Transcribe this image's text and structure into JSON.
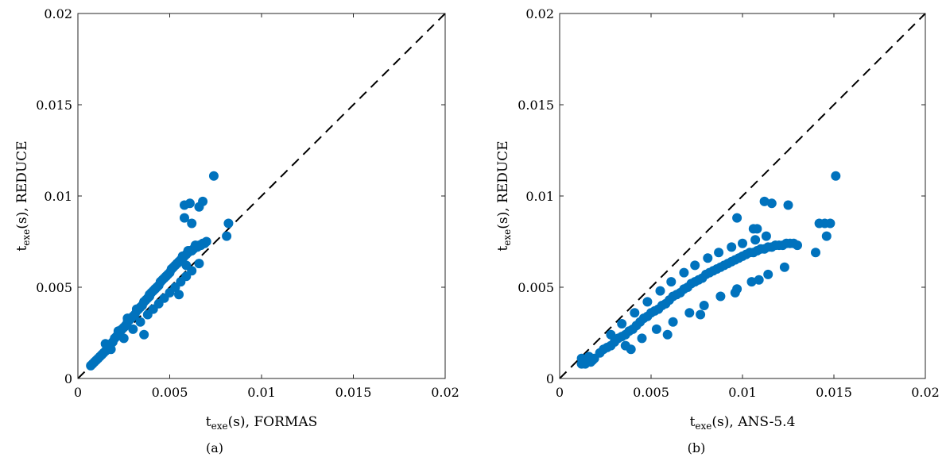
{
  "chart_data": [
    {
      "type": "scatter",
      "panel": "(a)",
      "xlabel_main": "t",
      "xlabel_sub": "exe",
      "xlabel_rest": "(s), FORMAS",
      "ylabel_main": "t",
      "ylabel_sub": "exe",
      "ylabel_rest": "(s), REDUCE",
      "xlim": [
        0,
        0.02
      ],
      "ylim": [
        0,
        0.02
      ],
      "xticks": [
        "0",
        "0.005",
        "0.01",
        "0.015",
        "0.02"
      ],
      "yticks": [
        "0",
        "0.005",
        "0.01",
        "0.015",
        "0.02"
      ],
      "reference_line": "y = x (dashed, black)",
      "marker_color": "#0072BD",
      "x": [
        0.0007,
        0.0008,
        0.0009,
        0.001,
        0.0011,
        0.0012,
        0.0013,
        0.0014,
        0.0015,
        0.0016,
        0.0017,
        0.0018,
        0.0019,
        0.002,
        0.0021,
        0.0022,
        0.0023,
        0.0024,
        0.0025,
        0.0026,
        0.0027,
        0.0028,
        0.0029,
        0.003,
        0.0031,
        0.0032,
        0.0033,
        0.0034,
        0.0035,
        0.0036,
        0.0037,
        0.0038,
        0.0039,
        0.004,
        0.0041,
        0.0042,
        0.0043,
        0.0044,
        0.0045,
        0.0046,
        0.0047,
        0.0048,
        0.0049,
        0.005,
        0.0051,
        0.0052,
        0.0053,
        0.0054,
        0.0055,
        0.0056,
        0.0057,
        0.0058,
        0.0059,
        0.006,
        0.0061,
        0.0062,
        0.0063,
        0.0064,
        0.0065,
        0.0066,
        0.0067,
        0.0068,
        0.0069,
        0.007,
        0.0015,
        0.0022,
        0.0027,
        0.0032,
        0.0036,
        0.0039,
        0.0042,
        0.0045,
        0.0048,
        0.0051,
        0.0054,
        0.0057,
        0.006,
        0.0064,
        0.0018,
        0.0025,
        0.003,
        0.0034,
        0.0038,
        0.0041,
        0.0044,
        0.0047,
        0.005,
        0.0053,
        0.0056,
        0.0059,
        0.0062,
        0.0066,
        0.0036,
        0.0058,
        0.0061,
        0.0058,
        0.0062,
        0.0068,
        0.0066,
        0.0082,
        0.0081,
        0.0074,
        0.0059,
        0.0055
      ],
      "y": [
        0.0007,
        0.0008,
        0.0009,
        0.001,
        0.0011,
        0.0012,
        0.0013,
        0.0014,
        0.0015,
        0.0016,
        0.0018,
        0.0019,
        0.002,
        0.0022,
        0.0023,
        0.0024,
        0.0026,
        0.0027,
        0.0028,
        0.0029,
        0.0031,
        0.0032,
        0.0033,
        0.0034,
        0.0035,
        0.0037,
        0.0038,
        0.0039,
        0.004,
        0.0042,
        0.0043,
        0.0044,
        0.0045,
        0.0047,
        0.0048,
        0.0049,
        0.005,
        0.0051,
        0.0053,
        0.0054,
        0.0055,
        0.0056,
        0.0057,
        0.0058,
        0.006,
        0.0061,
        0.0062,
        0.0063,
        0.0064,
        0.0065,
        0.0066,
        0.0067,
        0.0068,
        0.0069,
        0.007,
        0.007,
        0.0071,
        0.0072,
        0.0072,
        0.0073,
        0.0073,
        0.0074,
        0.0074,
        0.0075,
        0.0019,
        0.0026,
        0.0033,
        0.0038,
        0.0042,
        0.0046,
        0.0049,
        0.0053,
        0.0056,
        0.006,
        0.0063,
        0.0067,
        0.007,
        0.0073,
        0.0016,
        0.0022,
        0.0027,
        0.0031,
        0.0035,
        0.0038,
        0.0041,
        0.0044,
        0.0047,
        0.005,
        0.0053,
        0.0056,
        0.0059,
        0.0063,
        0.0024,
        0.0095,
        0.0096,
        0.0088,
        0.0085,
        0.0097,
        0.0094,
        0.0085,
        0.0078,
        0.0111,
        0.0062,
        0.0046
      ]
    },
    {
      "type": "scatter",
      "panel": "(b)",
      "xlabel_main": "t",
      "xlabel_sub": "exe",
      "xlabel_rest": "(s), ANS-5.4",
      "ylabel_main": "t",
      "ylabel_sub": "exe",
      "ylabel_rest": "(s), REDUCE",
      "xlim": [
        0,
        0.02
      ],
      "ylim": [
        0,
        0.02
      ],
      "xticks": [
        "0",
        "0.005",
        "0.01",
        "0.015",
        "0.02"
      ],
      "yticks": [
        "0",
        "0.005",
        "0.01",
        "0.015",
        "0.02"
      ],
      "reference_line": "y = x (dashed, black)",
      "marker_color": "#0072BD",
      "x": [
        0.0012,
        0.0013,
        0.0014,
        0.0015,
        0.0016,
        0.0017,
        0.0018,
        0.0019,
        0.0012,
        0.0016,
        0.0022,
        0.0024,
        0.0026,
        0.0028,
        0.003,
        0.0032,
        0.0034,
        0.0036,
        0.0038,
        0.004,
        0.0042,
        0.0044,
        0.0046,
        0.0048,
        0.005,
        0.0052,
        0.0054,
        0.0056,
        0.0058,
        0.006,
        0.0062,
        0.0064,
        0.0066,
        0.0068,
        0.007,
        0.0072,
        0.0074,
        0.0076,
        0.0078,
        0.008,
        0.0082,
        0.0084,
        0.0086,
        0.0088,
        0.009,
        0.0092,
        0.0094,
        0.0096,
        0.0098,
        0.01,
        0.0102,
        0.0104,
        0.0106,
        0.0108,
        0.011,
        0.0112,
        0.0114,
        0.0116,
        0.0118,
        0.012,
        0.0122,
        0.0124,
        0.0126,
        0.0128,
        0.013,
        0.0028,
        0.0034,
        0.0041,
        0.0048,
        0.0055,
        0.0061,
        0.0068,
        0.0074,
        0.0081,
        0.0087,
        0.0094,
        0.01,
        0.0107,
        0.0113,
        0.0036,
        0.0045,
        0.0053,
        0.0062,
        0.0071,
        0.0079,
        0.0088,
        0.0097,
        0.0105,
        0.0114,
        0.0123,
        0.0039,
        0.0059,
        0.0077,
        0.0096,
        0.0109,
        0.0112,
        0.0116,
        0.0125,
        0.0097,
        0.0106,
        0.0142,
        0.0145,
        0.0148,
        0.0146,
        0.0151,
        0.014,
        0.0108
      ],
      "y": [
        0.0008,
        0.0009,
        0.0008,
        0.0009,
        0.001,
        0.0009,
        0.001,
        0.0011,
        0.0011,
        0.0012,
        0.0014,
        0.0016,
        0.0017,
        0.0018,
        0.002,
        0.0022,
        0.0023,
        0.0024,
        0.0026,
        0.0027,
        0.0029,
        0.0031,
        0.0033,
        0.0034,
        0.0036,
        0.0037,
        0.0038,
        0.004,
        0.0041,
        0.0043,
        0.0045,
        0.0046,
        0.0047,
        0.0049,
        0.005,
        0.0052,
        0.0053,
        0.0054,
        0.0055,
        0.0057,
        0.0058,
        0.0059,
        0.006,
        0.0061,
        0.0062,
        0.0063,
        0.0064,
        0.0065,
        0.0066,
        0.0067,
        0.0068,
        0.0069,
        0.0069,
        0.007,
        0.0071,
        0.0071,
        0.0072,
        0.0072,
        0.0073,
        0.0073,
        0.0073,
        0.0074,
        0.0074,
        0.0074,
        0.0073,
        0.0024,
        0.003,
        0.0036,
        0.0042,
        0.0048,
        0.0053,
        0.0058,
        0.0062,
        0.0066,
        0.0069,
        0.0072,
        0.0074,
        0.0076,
        0.0078,
        0.0018,
        0.0022,
        0.0027,
        0.0031,
        0.0036,
        0.004,
        0.0045,
        0.0049,
        0.0053,
        0.0057,
        0.0061,
        0.0016,
        0.0024,
        0.0035,
        0.0047,
        0.0054,
        0.0097,
        0.0096,
        0.0095,
        0.0088,
        0.0082,
        0.0085,
        0.0085,
        0.0085,
        0.0078,
        0.0111,
        0.0069,
        0.0082
      ]
    }
  ]
}
